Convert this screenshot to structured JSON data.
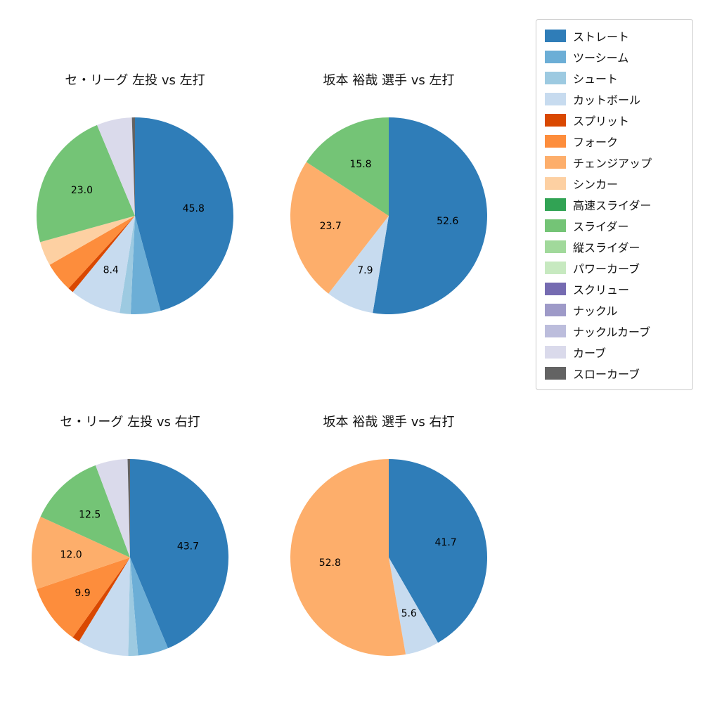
{
  "page": {
    "background": "#ffffff",
    "text_color": "#111111"
  },
  "legend": {
    "items": [
      {
        "label": "ストレート",
        "color": "#2f7db8"
      },
      {
        "label": "ツーシーム",
        "color": "#6caed6"
      },
      {
        "label": "シュート",
        "color": "#9dcae1"
      },
      {
        "label": "カットボール",
        "color": "#c7dbef"
      },
      {
        "label": "スプリット",
        "color": "#d94801"
      },
      {
        "label": "フォーク",
        "color": "#fd8d3c"
      },
      {
        "label": "チェンジアップ",
        "color": "#fdae6b"
      },
      {
        "label": "シンカー",
        "color": "#fdd0a2"
      },
      {
        "label": "高速スライダー",
        "color": "#31a354"
      },
      {
        "label": "スライダー",
        "color": "#74c476"
      },
      {
        "label": "縦スライダー",
        "color": "#a1d99b"
      },
      {
        "label": "パワーカーブ",
        "color": "#c7e9c0"
      },
      {
        "label": "スクリュー",
        "color": "#756bb1"
      },
      {
        "label": "ナックル",
        "color": "#9e9ac8"
      },
      {
        "label": "ナックルカーブ",
        "color": "#bcbddc"
      },
      {
        "label": "カーブ",
        "color": "#dadaeb"
      },
      {
        "label": "スローカーブ",
        "color": "#636363"
      }
    ]
  },
  "chart_data": [
    {
      "type": "pie",
      "title": "セ・リーグ 左投 vs 左打",
      "start_angle": "top",
      "direction": "clockwise",
      "slices": [
        {
          "name": "ストレート",
          "value": 45.8,
          "label": "45.8"
        },
        {
          "name": "ツーシーム",
          "value": 4.9
        },
        {
          "name": "シュート",
          "value": 1.8
        },
        {
          "name": "カットボール",
          "value": 8.4,
          "label": "8.4"
        },
        {
          "name": "スプリット",
          "value": 0.9
        },
        {
          "name": "フォーク",
          "value": 4.9
        },
        {
          "name": "シンカー",
          "value": 4.0
        },
        {
          "name": "スライダー",
          "value": 23.0,
          "label": "23.0"
        },
        {
          "name": "カーブ",
          "value": 5.8
        },
        {
          "name": "スローカーブ",
          "value": 0.5
        }
      ]
    },
    {
      "type": "pie",
      "title": "坂本 裕哉 選手 vs 左打",
      "start_angle": "top",
      "direction": "clockwise",
      "slices": [
        {
          "name": "ストレート",
          "value": 52.6,
          "label": "52.6"
        },
        {
          "name": "カットボール",
          "value": 7.9,
          "label": "7.9"
        },
        {
          "name": "チェンジアップ",
          "value": 23.7,
          "label": "23.7"
        },
        {
          "name": "スライダー",
          "value": 15.8,
          "label": "15.8"
        }
      ]
    },
    {
      "type": "pie",
      "title": "セ・リーグ 左投 vs 右打",
      "start_angle": "top",
      "direction": "clockwise",
      "slices": [
        {
          "name": "ストレート",
          "value": 43.7,
          "label": "43.7"
        },
        {
          "name": "ツーシーム",
          "value": 5.0
        },
        {
          "name": "シュート",
          "value": 1.6
        },
        {
          "name": "カットボール",
          "value": 8.4
        },
        {
          "name": "スプリット",
          "value": 1.2
        },
        {
          "name": "フォーク",
          "value": 9.9,
          "label": "9.9"
        },
        {
          "name": "チェンジアップ",
          "value": 12.0,
          "label": "12.0"
        },
        {
          "name": "スライダー",
          "value": 12.5,
          "label": "12.5"
        },
        {
          "name": "カーブ",
          "value": 5.3
        },
        {
          "name": "スローカーブ",
          "value": 0.4
        }
      ]
    },
    {
      "type": "pie",
      "title": "坂本 裕哉 選手 vs 右打",
      "start_angle": "top",
      "direction": "clockwise",
      "slices": [
        {
          "name": "ストレート",
          "value": 41.7,
          "label": "41.7"
        },
        {
          "name": "カットボール",
          "value": 5.6,
          "label": "5.6"
        },
        {
          "name": "チェンジアップ",
          "value": 52.8,
          "label": "52.8"
        }
      ]
    }
  ]
}
